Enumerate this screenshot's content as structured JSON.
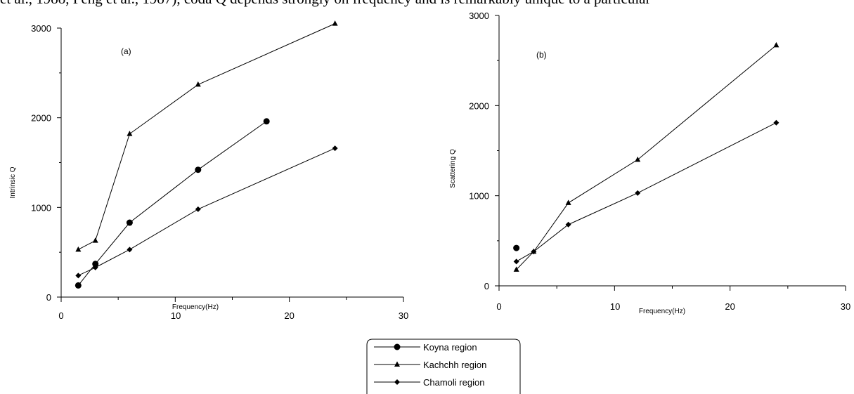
{
  "caption_text": "et al., 1988, Peng et al., 1987), coda Q depends strongly on frequency and is remarkably unique to a particular",
  "legend": {
    "entries": [
      {
        "label": "Koyna region",
        "marker": "circle"
      },
      {
        "label": "Kachchh region",
        "marker": "triangle"
      },
      {
        "label": "Chamoli region",
        "marker": "diamond"
      }
    ]
  },
  "chart_data": [
    {
      "type": "line",
      "panel_label": "(a)",
      "xlabel": "Frequency(Hz)",
      "ylabel": "Intrinsic Q",
      "xlim": [
        0,
        30
      ],
      "ylim": [
        0,
        3000
      ],
      "x_ticks": [
        "0",
        "10",
        "20",
        "30"
      ],
      "y_ticks": [
        "0",
        "1000",
        "2000",
        "3000"
      ],
      "series": [
        {
          "name": "Koyna region",
          "marker": "circle",
          "x": [
            1.5,
            3,
            6,
            12,
            18
          ],
          "y": [
            130,
            370,
            830,
            1420,
            1960
          ]
        },
        {
          "name": "Kachchh region",
          "marker": "triangle",
          "x": [
            1.5,
            3,
            6,
            12,
            24
          ],
          "y": [
            530,
            630,
            1820,
            2370,
            3050
          ]
        },
        {
          "name": "Chamoli region",
          "marker": "diamond",
          "x": [
            1.5,
            3,
            6,
            12,
            24
          ],
          "y": [
            240,
            330,
            530,
            980,
            1660
          ]
        }
      ]
    },
    {
      "type": "line",
      "panel_label": "(b)",
      "xlabel": "Frequency(Hz)",
      "ylabel": "Scattering Q",
      "xlim": [
        0,
        30
      ],
      "ylim": [
        0,
        3000
      ],
      "x_ticks": [
        "0",
        "10",
        "20",
        "30"
      ],
      "y_ticks": [
        "0",
        "1000",
        "2000",
        "3000"
      ],
      "series": [
        {
          "name": "Koyna region",
          "marker": "circle",
          "x": [
            1.5
          ],
          "y": [
            420
          ]
        },
        {
          "name": "Kachchh region",
          "marker": "triangle",
          "x": [
            1.5,
            3,
            6,
            12,
            24
          ],
          "y": [
            180,
            380,
            920,
            1400,
            2670
          ]
        },
        {
          "name": "Chamoli region",
          "marker": "diamond",
          "x": [
            1.5,
            3,
            6,
            12,
            24
          ],
          "y": [
            270,
            380,
            680,
            1030,
            1810
          ]
        }
      ]
    }
  ]
}
